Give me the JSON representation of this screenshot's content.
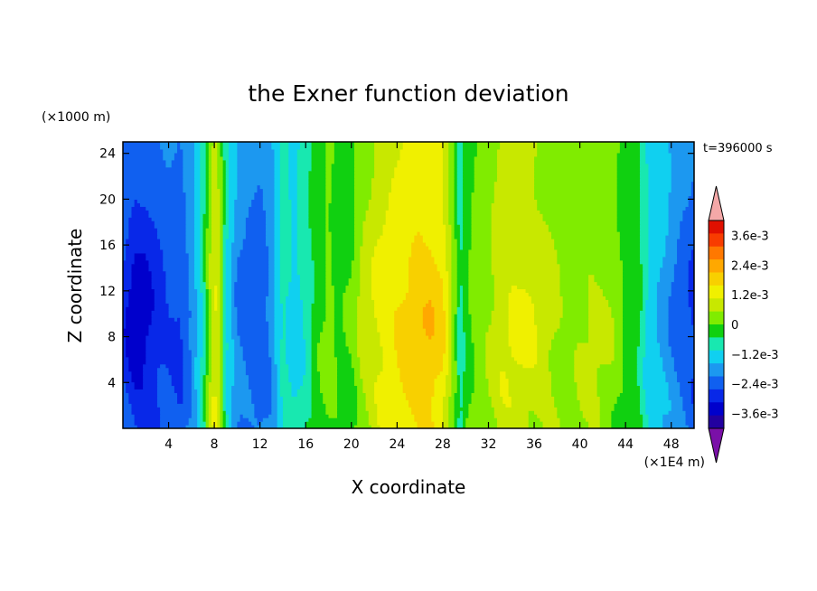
{
  "chart_data": {
    "type": "heatmap",
    "title": "the Exner function deviation",
    "xlabel": "X coordinate",
    "ylabel": "Z coordinate",
    "x_unit": "(×1E4 m)",
    "y_unit": "(×1000 m)",
    "time_label": "t=396000 s",
    "xlim": [
      0,
      50
    ],
    "ylim": [
      0,
      25
    ],
    "x_ticks": [
      "4",
      "8",
      "12",
      "16",
      "20",
      "24",
      "28",
      "32",
      "36",
      "40",
      "44",
      "48"
    ],
    "x_tick_values": [
      4,
      8,
      12,
      16,
      20,
      24,
      28,
      32,
      36,
      40,
      44,
      48
    ],
    "y_ticks": [
      "4",
      "8",
      "12",
      "16",
      "20",
      "24"
    ],
    "y_tick_values": [
      4,
      8,
      12,
      16,
      20,
      24
    ],
    "colorbar_labels": [
      "3.6e-3",
      "2.4e-3",
      "1.2e-3",
      "0",
      "−1.2e-3",
      "−2.4e-3",
      "−3.6e-3"
    ],
    "colorbar_label_values": [
      0.0036,
      0.0024,
      0.0012,
      0,
      -0.0012,
      -0.0024,
      -0.0036
    ],
    "levels": [
      -0.0042,
      -0.0036,
      -0.003,
      -0.0024,
      -0.0018,
      -0.0012,
      -0.0006,
      0,
      0.0006,
      0.0012,
      0.0018,
      0.0024,
      0.003,
      0.0036,
      0.0042
    ],
    "colors": [
      "#7a10a8",
      "#2200a0",
      "#0000cc",
      "#0828e8",
      "#1060f0",
      "#1c98f0",
      "#10d0f0",
      "#18e8b0",
      "#10d010",
      "#80ec00",
      "#c8e800",
      "#f0f000",
      "#f8d000",
      "#ffa800",
      "#ff7800",
      "#f83c00",
      "#e01000",
      "#f4a8a8"
    ],
    "column_profile_x": [
      0,
      1,
      2,
      3,
      4,
      5,
      6,
      7,
      7.5,
      8,
      8.5,
      9,
      10,
      11,
      12,
      13,
      14,
      15,
      16,
      17,
      18,
      19,
      20,
      21,
      22,
      23,
      24,
      25,
      26,
      27,
      28,
      29,
      29.5,
      30,
      31,
      32,
      33,
      34,
      35,
      36,
      37,
      38,
      39,
      40,
      41,
      42,
      43,
      44,
      45,
      46,
      47,
      48,
      49,
      50
    ],
    "column_profile_value": [
      -0.0026,
      -0.0032,
      -0.0031,
      -0.0027,
      -0.0024,
      -0.0025,
      -0.0017,
      -0.0004,
      0.0009,
      0.002,
      0.0012,
      -0.0005,
      -0.0018,
      -0.0021,
      -0.0023,
      -0.0017,
      -0.0004,
      -0.0009,
      -0.0004,
      0.0004,
      0.0008,
      0.0004,
      0.0006,
      0.0014,
      0.0018,
      0.0021,
      0.0024,
      0.0026,
      0.0029,
      0.0028,
      0.0024,
      0.0009,
      -0.0003,
      0.0003,
      0.001,
      0.0012,
      0.0016,
      0.0018,
      0.0018,
      0.0017,
      0.0015,
      0.0012,
      0.001,
      0.0012,
      0.0013,
      0.0012,
      0.001,
      0.0004,
      0.0003,
      -0.0008,
      -0.0012,
      -0.0017,
      -0.0022,
      -0.0025
    ]
  }
}
